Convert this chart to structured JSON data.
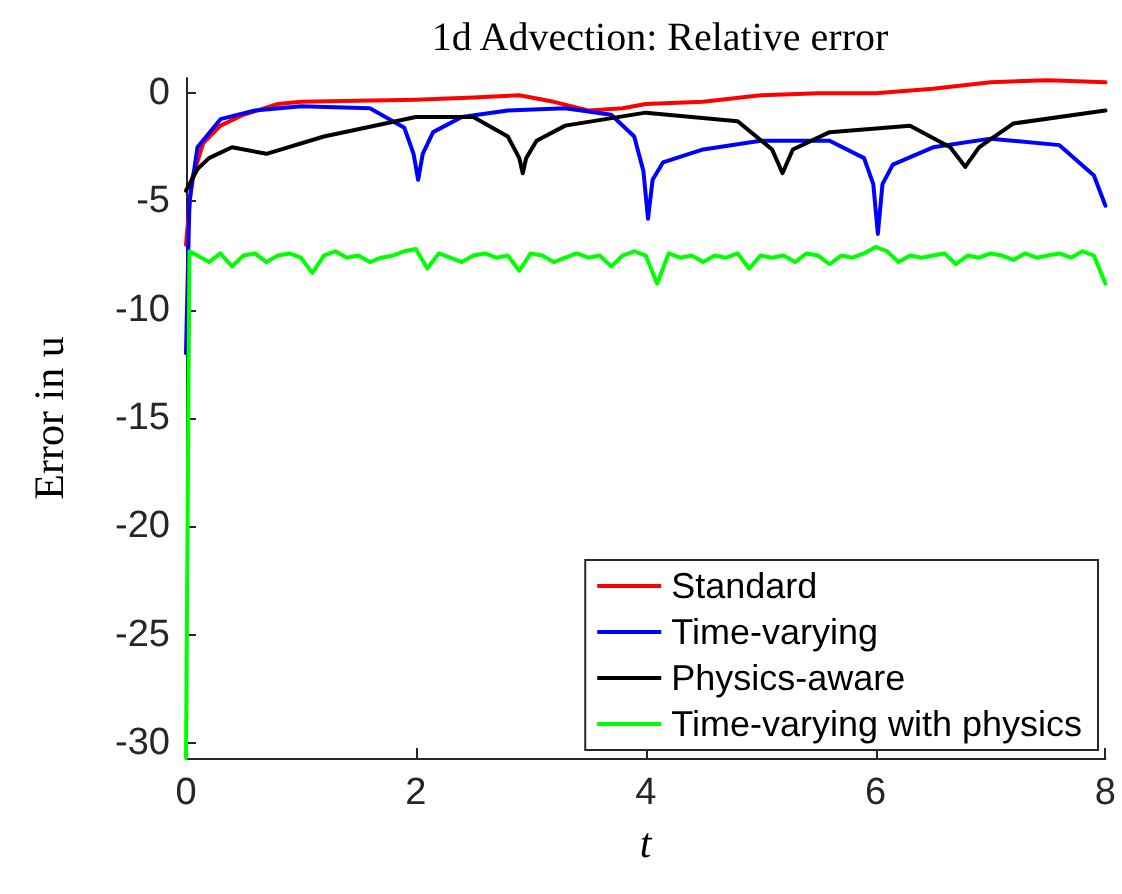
{
  "chart_data": {
    "type": "line",
    "title": "1d Advection: Relative error",
    "xlabel": "t",
    "ylabel": "Error in u",
    "xlim": [
      0,
      8
    ],
    "ylim": [
      -30.7,
      0.7
    ],
    "xticks": [
      0,
      2,
      4,
      6,
      8
    ],
    "yticks": [
      -30,
      -25,
      -20,
      -15,
      -10,
      -5,
      0
    ],
    "grid": false,
    "legend": "bottom right",
    "marker": "none",
    "line_style": "solid",
    "series": [
      {
        "name": "Standard",
        "color": "#ff0000",
        "x": [
          0,
          0.05,
          0.15,
          0.3,
          0.5,
          0.8,
          1,
          1.5,
          2,
          2.5,
          2.9,
          3.2,
          3.5,
          3.8,
          4,
          4.5,
          5,
          5.5,
          6,
          6.5,
          7,
          7.5,
          8
        ],
        "values": [
          -7,
          -4,
          -2.3,
          -1.5,
          -1,
          -0.5,
          -0.4,
          -0.35,
          -0.3,
          -0.2,
          -0.1,
          -0.4,
          -0.8,
          -0.7,
          -0.5,
          -0.4,
          -0.1,
          0,
          0,
          0.2,
          0.5,
          0.6,
          0.5
        ]
      },
      {
        "name": "Time-varying",
        "color": "#0000ff",
        "x": [
          0,
          0.03,
          0.1,
          0.3,
          0.6,
          1,
          1.6,
          1.9,
          1.98,
          2.02,
          2.06,
          2.15,
          2.4,
          2.8,
          3.3,
          3.7,
          3.9,
          3.98,
          4.02,
          4.06,
          4.15,
          4.5,
          5,
          5.6,
          5.9,
          5.98,
          6.02,
          6.06,
          6.15,
          6.5,
          7,
          7.6,
          7.9,
          8
        ],
        "values": [
          -12,
          -5,
          -2.5,
          -1.2,
          -0.8,
          -0.6,
          -0.7,
          -1.6,
          -2.8,
          -4,
          -2.8,
          -1.8,
          -1.1,
          -0.8,
          -0.7,
          -1,
          -2,
          -3.6,
          -5.8,
          -4,
          -3.2,
          -2.6,
          -2.2,
          -2.2,
          -3,
          -4.2,
          -6.5,
          -4.2,
          -3.3,
          -2.5,
          -2.1,
          -2.4,
          -3.8,
          -5.2
        ]
      },
      {
        "name": "Physics-aware",
        "color": "#000000",
        "x": [
          0,
          0.1,
          0.2,
          0.4,
          0.7,
          1.2,
          2,
          2.5,
          2.8,
          2.9,
          2.93,
          2.96,
          3.05,
          3.3,
          4,
          4.8,
          5.1,
          5.19,
          5.28,
          5.6,
          6.3,
          6.65,
          6.78,
          6.9,
          7.2,
          8
        ],
        "values": [
          -4.5,
          -3.5,
          -3,
          -2.5,
          -2.8,
          -2,
          -1.1,
          -1.1,
          -2,
          -3,
          -3.7,
          -3,
          -2.2,
          -1.5,
          -0.9,
          -1.3,
          -2.6,
          -3.7,
          -2.6,
          -1.8,
          -1.5,
          -2.5,
          -3.4,
          -2.5,
          -1.4,
          -0.8
        ]
      },
      {
        "name": "Time-varying with physics",
        "color": "#00ff00",
        "x": [
          0,
          0.03,
          0.1,
          0.2,
          0.3,
          0.4,
          0.5,
          0.6,
          0.7,
          0.8,
          0.9,
          1,
          1.1,
          1.2,
          1.3,
          1.4,
          1.5,
          1.6,
          1.7,
          1.8,
          1.9,
          2,
          2.1,
          2.2,
          2.3,
          2.4,
          2.5,
          2.6,
          2.7,
          2.8,
          2.9,
          3,
          3.1,
          3.2,
          3.3,
          3.4,
          3.5,
          3.6,
          3.7,
          3.8,
          3.9,
          4,
          4.1,
          4.2,
          4.3,
          4.4,
          4.5,
          4.6,
          4.7,
          4.8,
          4.9,
          5,
          5.1,
          5.2,
          5.3,
          5.4,
          5.5,
          5.6,
          5.7,
          5.8,
          5.9,
          6,
          6.1,
          6.2,
          6.3,
          6.4,
          6.5,
          6.6,
          6.7,
          6.8,
          6.9,
          7,
          7.1,
          7.2,
          7.3,
          7.4,
          7.5,
          7.6,
          7.7,
          7.8,
          7.9,
          8
        ],
        "values": [
          -30.7,
          -7.3,
          -7.5,
          -7.8,
          -7.4,
          -8,
          -7.5,
          -7.4,
          -7.8,
          -7.5,
          -7.4,
          -7.6,
          -8.3,
          -7.5,
          -7.3,
          -7.6,
          -7.5,
          -7.8,
          -7.6,
          -7.5,
          -7.3,
          -7.2,
          -8.1,
          -7.4,
          -7.6,
          -7.8,
          -7.5,
          -7.4,
          -7.6,
          -7.5,
          -8.2,
          -7.4,
          -7.5,
          -7.8,
          -7.6,
          -7.4,
          -7.6,
          -7.5,
          -8,
          -7.5,
          -7.3,
          -7.5,
          -8.8,
          -7.4,
          -7.6,
          -7.5,
          -7.8,
          -7.5,
          -7.6,
          -7.4,
          -8.1,
          -7.5,
          -7.6,
          -7.5,
          -7.8,
          -7.4,
          -7.5,
          -7.9,
          -7.5,
          -7.6,
          -7.4,
          -7.1,
          -7.3,
          -7.8,
          -7.5,
          -7.6,
          -7.5,
          -7.4,
          -7.9,
          -7.5,
          -7.6,
          -7.4,
          -7.5,
          -7.7,
          -7.4,
          -7.6,
          -7.5,
          -7.4,
          -7.6,
          -7.3,
          -7.5,
          -8.8
        ]
      }
    ]
  }
}
